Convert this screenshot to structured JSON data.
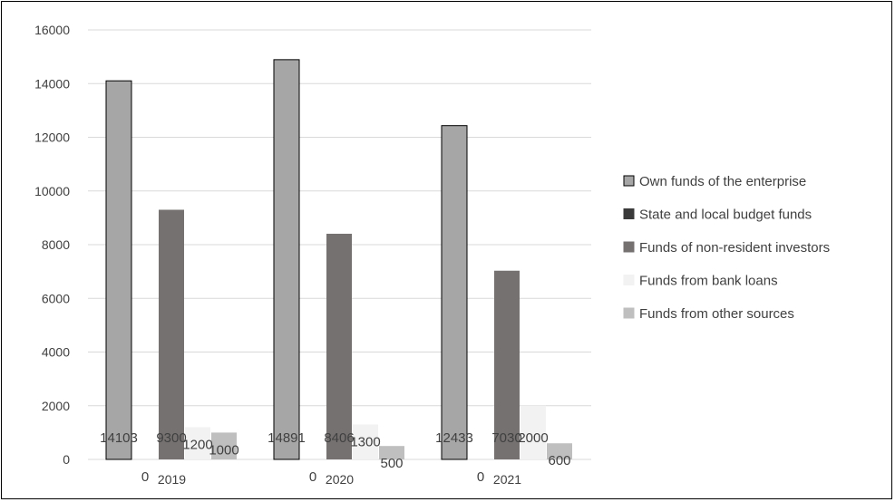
{
  "chart_data": {
    "type": "bar",
    "title": "",
    "xlabel": "",
    "ylabel": "",
    "categories": [
      "2019",
      "2020",
      "2021"
    ],
    "ylim": [
      0,
      16000
    ],
    "yticks": [
      0,
      2000,
      4000,
      6000,
      8000,
      10000,
      12000,
      14000,
      16000
    ],
    "grid": true,
    "legend": "right",
    "series": [
      {
        "name": "Own funds of the enterprise",
        "values": [
          14103,
          14891,
          12433
        ],
        "color": "#a6a6a6",
        "outline": "#000000"
      },
      {
        "name": "State and local budget funds",
        "values": [
          0,
          0,
          0
        ],
        "color": "#3a3a3a",
        "outline": "#3a3a3a"
      },
      {
        "name": "Funds of non-resident investors",
        "values": [
          9300,
          8406,
          7030
        ],
        "color": "#767171",
        "outline": "#767171"
      },
      {
        "name": "Funds from bank loans",
        "values": [
          1200,
          1300,
          2000
        ],
        "color": "#f2f2f2",
        "outline": "#f2f2f2"
      },
      {
        "name": "Funds from other sources",
        "values": [
          1000,
          500,
          600
        ],
        "color": "#bfbfbf",
        "outline": "#bfbfbf"
      }
    ]
  }
}
